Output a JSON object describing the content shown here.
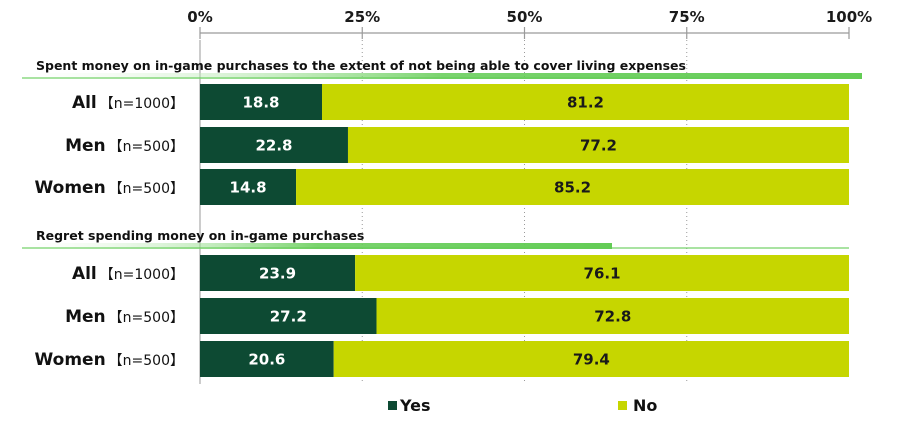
{
  "chart_data": {
    "type": "bar",
    "orientation": "horizontal",
    "stacked": true,
    "xlim": [
      0,
      100
    ],
    "ticks": [
      "0%",
      "25%",
      "50%",
      "75%",
      "100%"
    ],
    "tick_values": [
      0,
      25,
      50,
      75,
      100
    ],
    "grid": true,
    "legend_position": "bottom",
    "colors": {
      "yes": "#0d4a33",
      "no": "#c6d600",
      "band": "#63cc55"
    },
    "groups": [
      {
        "title": "Spent money on in-game purchases to the extent of not being able to cover living expenses",
        "categories": [
          {
            "main": "All",
            "n": "【n=1000】",
            "yes": 18.8,
            "no": 81.2
          },
          {
            "main": "Men",
            "n": "【n=500】",
            "yes": 22.8,
            "no": 77.2
          },
          {
            "main": "Women",
            "n": "【n=500】",
            "yes": 14.8,
            "no": 85.2
          }
        ]
      },
      {
        "title": "Regret spending money on in-game purchases",
        "categories": [
          {
            "main": "All",
            "n": "【n=1000】",
            "yes": 23.9,
            "no": 76.1
          },
          {
            "main": "Men",
            "n": "【n=500】",
            "yes": 27.2,
            "no": 72.8
          },
          {
            "main": "Women",
            "n": "【n=500】",
            "yes": 20.6,
            "no": 79.4
          }
        ]
      }
    ],
    "legend": [
      {
        "key": "yes",
        "label": "Yes"
      },
      {
        "key": "no",
        "label": "No"
      }
    ]
  }
}
